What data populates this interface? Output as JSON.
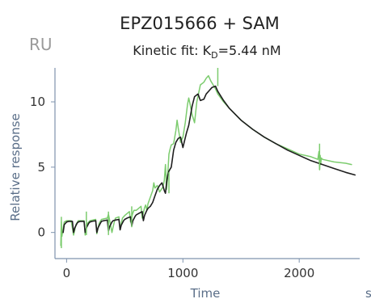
{
  "chart_data": {
    "type": "line",
    "title": "EPZ015666 + SAM",
    "subtitle_prefix": "Kinetic fit: K",
    "subtitle_subscript": "D",
    "subtitle_suffix": "=5.44 nM",
    "unit_label": "RU",
    "xlabel": "Time",
    "x_unit": "s",
    "ylabel": "Relative response",
    "xlim": [
      -100,
      2520
    ],
    "ylim": [
      -2,
      12.6
    ],
    "x_ticks": [
      0,
      1000,
      2000
    ],
    "y_ticks": [
      0,
      5,
      10
    ],
    "grid": false,
    "legend": "none",
    "series": [
      {
        "color": "#7ccc6e",
        "x": [
          -50,
          -45,
          -40,
          -30,
          -20,
          0,
          40,
          60,
          70,
          80,
          100,
          150,
          160,
          170,
          180,
          200,
          250,
          260,
          270,
          280,
          300,
          350,
          360,
          390,
          400,
          410,
          420,
          450,
          460,
          470,
          480,
          500,
          540,
          550,
          560,
          570,
          580,
          600,
          640,
          650,
          660,
          670,
          680,
          690,
          700,
          740,
          750,
          760,
          780,
          800,
          830,
          840,
          850,
          860,
          870,
          880,
          890,
          900,
          920,
          940,
          950,
          960,
          980,
          1000,
          1020,
          1040,
          1050,
          1060,
          1080,
          1100,
          1120,
          1150,
          1180,
          1200,
          1220,
          1240,
          1260,
          1280,
          1300,
          1350,
          1400,
          1500,
          1600,
          1700,
          1800,
          1900,
          2000,
          2100,
          2160,
          2170,
          2175,
          2180,
          2185,
          2190,
          2200,
          2300,
          2400,
          2450
        ],
        "y": [
          -1.0,
          0.8,
          -0.3,
          0.3,
          0.8,
          0.9,
          0.9,
          -0.2,
          0.2,
          0.6,
          0.9,
          0.9,
          -0.2,
          0.3,
          0.7,
          0.9,
          1.0,
          -0.1,
          0.3,
          0.7,
          1.0,
          1.1,
          1.4,
          0.0,
          0.4,
          0.8,
          1.1,
          1.2,
          0.2,
          0.7,
          1.1,
          1.3,
          1.6,
          0.8,
          1.2,
          1.5,
          1.7,
          1.7,
          2.0,
          1.1,
          1.5,
          1.9,
          2.1,
          1.7,
          2.2,
          3.2,
          3.8,
          3.4,
          3.6,
          3.1,
          3.5,
          4.0,
          5.2,
          3.3,
          4.5,
          6.0,
          6.4,
          6.7,
          6.8,
          7.8,
          8.6,
          8.0,
          6.9,
          7.3,
          8.4,
          9.8,
          10.3,
          9.9,
          9.0,
          8.4,
          10.0,
          11.3,
          11.5,
          11.8,
          12.0,
          11.6,
          11.3,
          11.0,
          10.6,
          10.0,
          9.5,
          8.6,
          7.9,
          7.3,
          6.8,
          6.4,
          6.0,
          5.8,
          5.6,
          6.2,
          4.8,
          5.9,
          5.2,
          5.7,
          5.6,
          5.4,
          5.3,
          5.2
        ]
      },
      {
        "color": "#1e1e1e",
        "x": [
          -30,
          -20,
          0,
          20,
          50,
          60,
          70,
          90,
          100,
          120,
          150,
          160,
          170,
          190,
          200,
          220,
          250,
          260,
          270,
          290,
          300,
          320,
          350,
          360,
          370,
          390,
          400,
          420,
          450,
          460,
          470,
          490,
          500,
          520,
          550,
          560,
          570,
          590,
          600,
          620,
          650,
          660,
          670,
          690,
          700,
          720,
          740,
          760,
          780,
          800,
          820,
          840,
          850,
          860,
          870,
          880,
          900,
          920,
          940,
          960,
          980,
          1000,
          1030,
          1050,
          1080,
          1100,
          1130,
          1150,
          1180,
          1200,
          1230,
          1250,
          1280,
          1300,
          1350,
          1400,
          1500,
          1600,
          1700,
          1800,
          1900,
          2000,
          2100,
          2200,
          2300,
          2400,
          2480
        ],
        "y": [
          0.0,
          0.6,
          0.8,
          0.85,
          0.85,
          0.0,
          0.35,
          0.7,
          0.8,
          0.85,
          0.85,
          0.0,
          0.35,
          0.7,
          0.8,
          0.85,
          0.9,
          0.0,
          0.35,
          0.7,
          0.85,
          0.9,
          0.95,
          0.1,
          0.45,
          0.8,
          0.9,
          0.95,
          1.0,
          0.2,
          0.55,
          0.9,
          1.0,
          1.1,
          1.2,
          0.5,
          0.9,
          1.25,
          1.35,
          1.45,
          1.6,
          0.9,
          1.3,
          1.7,
          1.85,
          2.0,
          2.3,
          2.8,
          3.3,
          3.6,
          3.8,
          3.2,
          3.0,
          3.8,
          4.4,
          4.7,
          5.0,
          6.3,
          6.9,
          7.2,
          7.3,
          6.5,
          7.6,
          8.2,
          9.7,
          10.4,
          10.6,
          10.1,
          10.2,
          10.6,
          10.9,
          11.1,
          11.2,
          10.8,
          10.1,
          9.5,
          8.6,
          7.9,
          7.3,
          6.8,
          6.3,
          5.9,
          5.5,
          5.2,
          4.9,
          4.6,
          4.4
        ]
      }
    ],
    "annotations": [
      {
        "x": -45,
        "y1": -1.2,
        "y2": 1.2
      },
      {
        "x": 170,
        "y1": -0.2,
        "y2": 1.6
      },
      {
        "x": 360,
        "y1": -0.2,
        "y2": 1.6
      },
      {
        "x": 560,
        "y1": 0.4,
        "y2": 2.0
      },
      {
        "x": 880,
        "y1": 3.0,
        "y2": 4.6
      },
      {
        "x": 1300,
        "y1": 11.2,
        "y2": 12.6
      },
      {
        "x": 2175,
        "y1": 4.8,
        "y2": 6.8
      }
    ]
  }
}
